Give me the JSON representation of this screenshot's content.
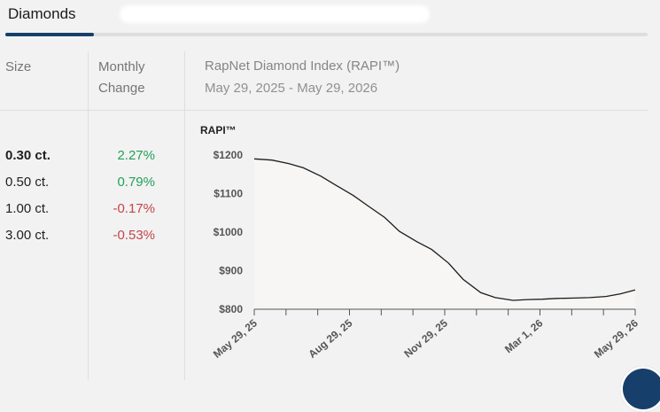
{
  "tabs": {
    "active_label": "Diamonds"
  },
  "table": {
    "headers": {
      "size": "Size",
      "change_line1": "Monthly",
      "change_line2": "Change"
    },
    "index_title": "RapNet Diamond Index (RAPI™)",
    "index_dates": "May 29, 2025 - May 29, 2026",
    "rows": [
      {
        "size": "0.30 ct.",
        "change": "2.27%"
      },
      {
        "size": "0.50 ct.",
        "change": "0.79%"
      },
      {
        "size": "1.00 ct.",
        "change": "-0.17%"
      },
      {
        "size": "3.00 ct.",
        "change": "-0.53%"
      }
    ]
  },
  "colors": {
    "positive": "#22a05a",
    "negative": "#c2454a",
    "accent": "#173f6b"
  },
  "chart_data": {
    "type": "area",
    "ylabel": "RAPI™",
    "y_ticks": [
      "$1200",
      "$1100",
      "$1000",
      "$900",
      "$800"
    ],
    "y_tick_values": [
      1200,
      1100,
      1000,
      900,
      800
    ],
    "ylim": [
      800,
      1200
    ],
    "x_tick_labels": [
      "May 29, 25",
      "Aug 29, 25",
      "Nov 29, 25",
      "Mar 1, 26",
      "May 29, 26"
    ],
    "x": [
      "2025-05-29",
      "2025-06-15",
      "2025-07-01",
      "2025-07-15",
      "2025-08-01",
      "2025-08-15",
      "2025-09-01",
      "2025-09-15",
      "2025-10-01",
      "2025-10-15",
      "2025-11-01",
      "2025-11-15",
      "2025-12-01",
      "2025-12-15",
      "2026-01-01",
      "2026-01-15",
      "2026-02-01",
      "2026-02-15",
      "2026-03-01",
      "2026-03-15",
      "2026-04-01",
      "2026-04-15",
      "2026-05-01",
      "2026-05-15",
      "2026-05-29"
    ],
    "series": [
      {
        "values": [
          1190,
          1187,
          1178,
          1167,
          1145,
          1122,
          1095,
          1068,
          1038,
          1002,
          975,
          955,
          920,
          878,
          843,
          830,
          823,
          825,
          826,
          828,
          829,
          830,
          833,
          840,
          850
        ]
      }
    ],
    "grid": false,
    "legend": "none"
  }
}
